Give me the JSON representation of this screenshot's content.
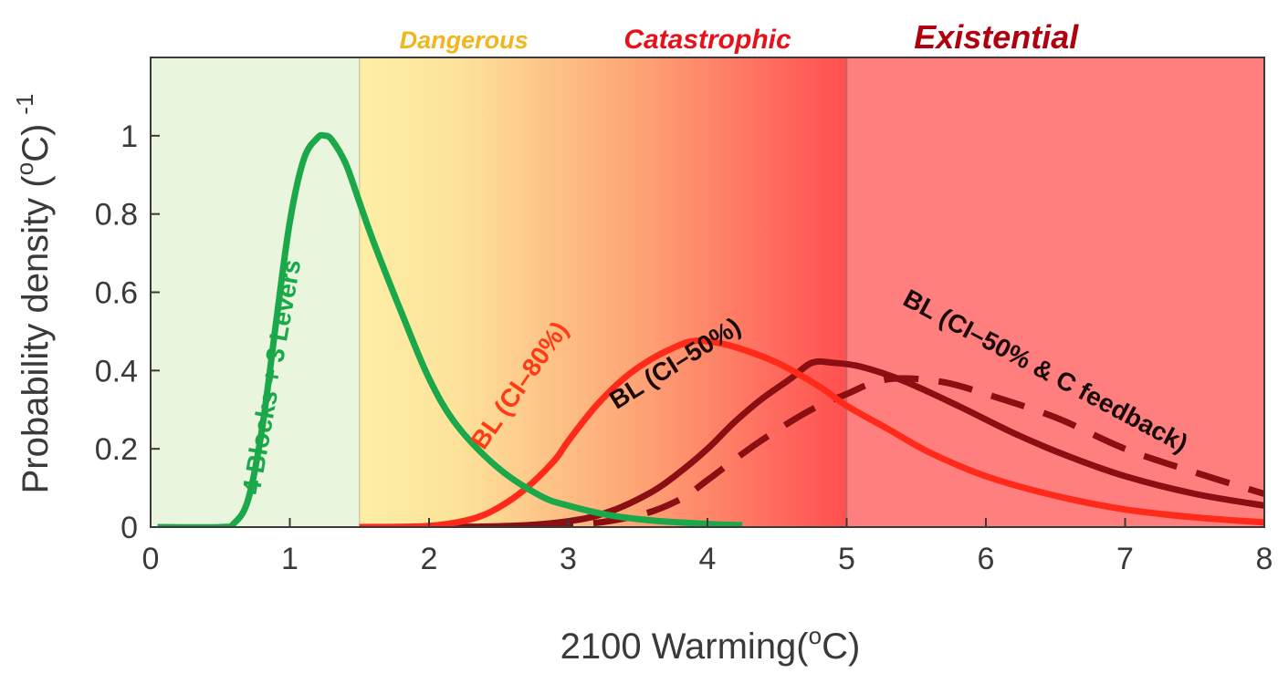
{
  "chart_data": {
    "type": "line",
    "title": "",
    "xlabel_main": "2100 Warming(",
    "xlabel_sup": "o",
    "xlabel_end": "C)",
    "ylabel_main": "Probability density (",
    "ylabel_sup1": "o",
    "ylabel_mid": "C)",
    "ylabel_sup2": "-1",
    "xlim": [
      0,
      8
    ],
    "ylim": [
      0,
      1.2
    ],
    "xticks": [
      0,
      1,
      2,
      3,
      4,
      5,
      6,
      7,
      8
    ],
    "yticks": [
      0,
      0.2,
      0.4,
      0.6,
      0.8,
      1
    ],
    "xtick_labels": [
      "0",
      "1",
      "2",
      "3",
      "4",
      "5",
      "6",
      "7",
      "8"
    ],
    "ytick_labels": [
      "0",
      "0.2",
      "0.4",
      "0.6",
      "0.8",
      "1"
    ],
    "zones": [
      {
        "label": "",
        "from": 0,
        "to": 1.5,
        "color": "#e9f5dc"
      },
      {
        "label": "Dangerous",
        "from": 1.5,
        "to": 3,
        "color": "#f7c21a"
      },
      {
        "label": "Catastrophic",
        "from": 3,
        "to": 5,
        "color": "#ff2a1a"
      },
      {
        "label": "Existential",
        "from": 5,
        "to": 8,
        "color": "#c0000f"
      }
    ],
    "series": [
      {
        "name": "4 Blocks + 3 Levers",
        "color": "#1aa84a",
        "dash": "solid",
        "x": [
          0.05,
          0.5,
          0.6,
          0.7,
          0.8,
          0.9,
          1.0,
          1.1,
          1.2,
          1.25,
          1.3,
          1.4,
          1.5,
          1.6,
          1.8,
          2.0,
          2.2,
          2.5,
          2.8,
          3.0,
          3.3,
          3.6,
          4.0,
          4.25
        ],
        "y": [
          0,
          0,
          0.01,
          0.07,
          0.25,
          0.52,
          0.78,
          0.94,
          0.995,
          1.0,
          0.99,
          0.93,
          0.83,
          0.73,
          0.55,
          0.38,
          0.26,
          0.15,
          0.08,
          0.055,
          0.03,
          0.017,
          0.008,
          0.005
        ]
      },
      {
        "name": "BL (CI–80%)",
        "color": "#ff2a1a",
        "dash": "solid",
        "x": [
          1.5,
          2.0,
          2.3,
          2.5,
          2.7,
          2.9,
          3.0,
          3.2,
          3.4,
          3.6,
          3.8,
          3.9,
          4.0,
          4.2,
          4.5,
          4.8,
          5.0,
          5.3,
          5.6,
          6.0,
          6.5,
          7.0,
          7.5,
          8.0
        ],
        "y": [
          0,
          0.003,
          0.02,
          0.05,
          0.1,
          0.17,
          0.22,
          0.31,
          0.38,
          0.43,
          0.465,
          0.475,
          0.475,
          0.46,
          0.42,
          0.36,
          0.31,
          0.25,
          0.19,
          0.13,
          0.08,
          0.045,
          0.025,
          0.012
        ]
      },
      {
        "name": "BL (CI–50%)",
        "color": "#8a0e12",
        "dash": "solid",
        "x": [
          1.5,
          2.5,
          3.0,
          3.3,
          3.6,
          3.8,
          4.0,
          4.2,
          4.4,
          4.6,
          4.75,
          4.9,
          5.1,
          5.4,
          5.8,
          6.2,
          6.6,
          7.0,
          7.5,
          8.0
        ],
        "y": [
          0,
          0.002,
          0.015,
          0.04,
          0.09,
          0.14,
          0.2,
          0.27,
          0.33,
          0.38,
          0.42,
          0.42,
          0.41,
          0.375,
          0.31,
          0.24,
          0.18,
          0.13,
          0.085,
          0.055
        ]
      },
      {
        "name": "BL (CI–50% & C feedback)",
        "color": "#8a0e12",
        "dash": "dashed",
        "x": [
          2.0,
          3.0,
          3.5,
          3.8,
          4.0,
          4.3,
          4.6,
          4.8,
          5.0,
          5.2,
          5.4,
          5.7,
          6.0,
          6.5,
          7.0,
          7.5,
          8.0
        ],
        "y": [
          0,
          0.005,
          0.03,
          0.07,
          0.12,
          0.2,
          0.27,
          0.31,
          0.34,
          0.37,
          0.38,
          0.37,
          0.34,
          0.28,
          0.2,
          0.14,
          0.085
        ]
      }
    ],
    "annotations": {
      "green": "4 Blocks + 3 Levers",
      "ci80": "BL (CI–80%)",
      "ci50": "BL (CI–50%)",
      "feedback": "BL (CI–50% & C feedback)"
    }
  }
}
